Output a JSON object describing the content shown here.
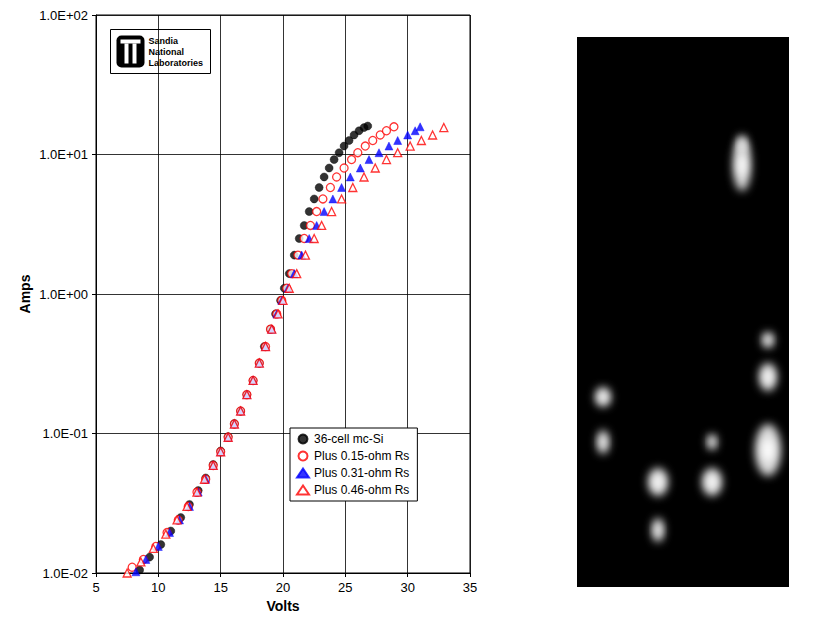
{
  "chart_data": {
    "type": "scatter",
    "x_label": "Volts",
    "y_label": "Amps",
    "annotations": [
      "Sandia National Laboratories"
    ],
    "log": "y",
    "grid": true,
    "legend": "lower right",
    "xlim": [
      5,
      35
    ],
    "xticks": [
      5,
      10,
      15,
      20,
      25,
      30,
      35
    ],
    "ylim": [
      0.01,
      100
    ],
    "yticks": [
      {
        "value": 0.01,
        "label": "1.0E-02"
      },
      {
        "value": 0.1,
        "label": "1.0E-01"
      },
      {
        "value": 1,
        "label": "1.0E+00"
      },
      {
        "value": 10,
        "label": "1.0E+01"
      },
      {
        "value": 100,
        "label": "1.0E+02"
      }
    ],
    "series": [
      {
        "name": "36-cell mc-Si",
        "color": "#000000",
        "marker": "filled_circle",
        "x": [
          8.5,
          9.3,
          10.2,
          11.0,
          11.8,
          12.5,
          13.2,
          13.8,
          14.4,
          15.0,
          15.6,
          16.1,
          16.6,
          17.1,
          17.6,
          18.1,
          18.5,
          19.0,
          19.4,
          19.8,
          20.1,
          20.5,
          20.9,
          21.3,
          21.7,
          22.1,
          22.5,
          22.9,
          23.3,
          23.7,
          24.1,
          24.5,
          24.9,
          25.3,
          25.7,
          26.1,
          26.5,
          26.8
        ],
        "values": [
          0.0105,
          0.013,
          0.016,
          0.02,
          0.025,
          0.031,
          0.039,
          0.048,
          0.06,
          0.075,
          0.095,
          0.118,
          0.145,
          0.19,
          0.24,
          0.32,
          0.42,
          0.56,
          0.72,
          0.9,
          1.1,
          1.4,
          1.9,
          2.5,
          3.1,
          3.9,
          4.8,
          5.8,
          6.9,
          8.0,
          9.2,
          10.3,
          11.5,
          12.6,
          13.8,
          14.8,
          15.6,
          16.0
        ]
      },
      {
        "name": "Plus 0.15-ohm Rs",
        "color": "#ff0000",
        "marker": "open_circle",
        "x": [
          7.9,
          8.8,
          9.8,
          10.7,
          11.6,
          12.4,
          13.1,
          13.8,
          14.4,
          15.0,
          15.6,
          16.1,
          16.6,
          17.1,
          17.6,
          18.1,
          18.6,
          19.0,
          19.5,
          19.9,
          20.3,
          20.7,
          21.2,
          21.7,
          22.2,
          22.7,
          23.2,
          23.8,
          24.3,
          24.9,
          25.5,
          26.0,
          26.6,
          27.2,
          27.8,
          28.3,
          28.9
        ],
        "values": [
          0.011,
          0.0125,
          0.0155,
          0.0195,
          0.024,
          0.03,
          0.038,
          0.047,
          0.059,
          0.074,
          0.094,
          0.117,
          0.145,
          0.19,
          0.24,
          0.32,
          0.42,
          0.56,
          0.72,
          0.9,
          1.1,
          1.4,
          1.9,
          2.5,
          3.1,
          3.9,
          4.8,
          5.8,
          6.9,
          8.0,
          9.2,
          10.3,
          11.5,
          12.6,
          13.8,
          14.8,
          15.8
        ]
      },
      {
        "name": "Plus 0.31-ohm Rs",
        "color": "#0000ff",
        "marker": "filled_triangle",
        "x": [
          8.2,
          9.0,
          10.0,
          10.9,
          11.7,
          12.5,
          13.2,
          13.8,
          14.4,
          15.0,
          15.6,
          16.1,
          16.6,
          17.1,
          17.6,
          18.1,
          18.6,
          19.1,
          19.5,
          19.9,
          20.4,
          20.9,
          21.5,
          22.1,
          22.7,
          23.3,
          24.0,
          24.7,
          25.4,
          26.2,
          26.9,
          27.7,
          28.5,
          29.2,
          30.0,
          30.6,
          31.0
        ],
        "values": [
          0.0102,
          0.0125,
          0.0155,
          0.0195,
          0.024,
          0.03,
          0.038,
          0.047,
          0.059,
          0.074,
          0.094,
          0.117,
          0.145,
          0.19,
          0.24,
          0.32,
          0.42,
          0.56,
          0.72,
          0.9,
          1.1,
          1.4,
          1.9,
          2.5,
          3.1,
          3.9,
          4.8,
          5.8,
          6.9,
          8.0,
          9.2,
          10.3,
          11.5,
          12.6,
          13.8,
          14.8,
          15.8
        ]
      },
      {
        "name": "Plus 0.46-ohm Rs",
        "color": "#ff0000",
        "marker": "open_triangle",
        "x": [
          7.5,
          8.6,
          9.6,
          10.6,
          11.5,
          12.3,
          13.1,
          13.7,
          14.4,
          15.0,
          15.6,
          16.1,
          16.6,
          17.1,
          17.6,
          18.1,
          18.6,
          19.1,
          19.6,
          20.0,
          20.5,
          21.1,
          21.8,
          22.5,
          23.1,
          23.9,
          24.7,
          25.6,
          26.5,
          27.4,
          28.3,
          29.2,
          30.2,
          31.1,
          32.0,
          32.9
        ],
        "values": [
          0.01,
          0.012,
          0.015,
          0.019,
          0.024,
          0.03,
          0.038,
          0.047,
          0.059,
          0.074,
          0.094,
          0.117,
          0.145,
          0.19,
          0.24,
          0.32,
          0.42,
          0.56,
          0.72,
          0.9,
          1.1,
          1.4,
          1.9,
          2.5,
          3.1,
          3.9,
          4.8,
          5.8,
          6.9,
          8.0,
          9.2,
          10.3,
          11.5,
          12.6,
          13.8,
          15.6
        ]
      }
    ]
  }
}
